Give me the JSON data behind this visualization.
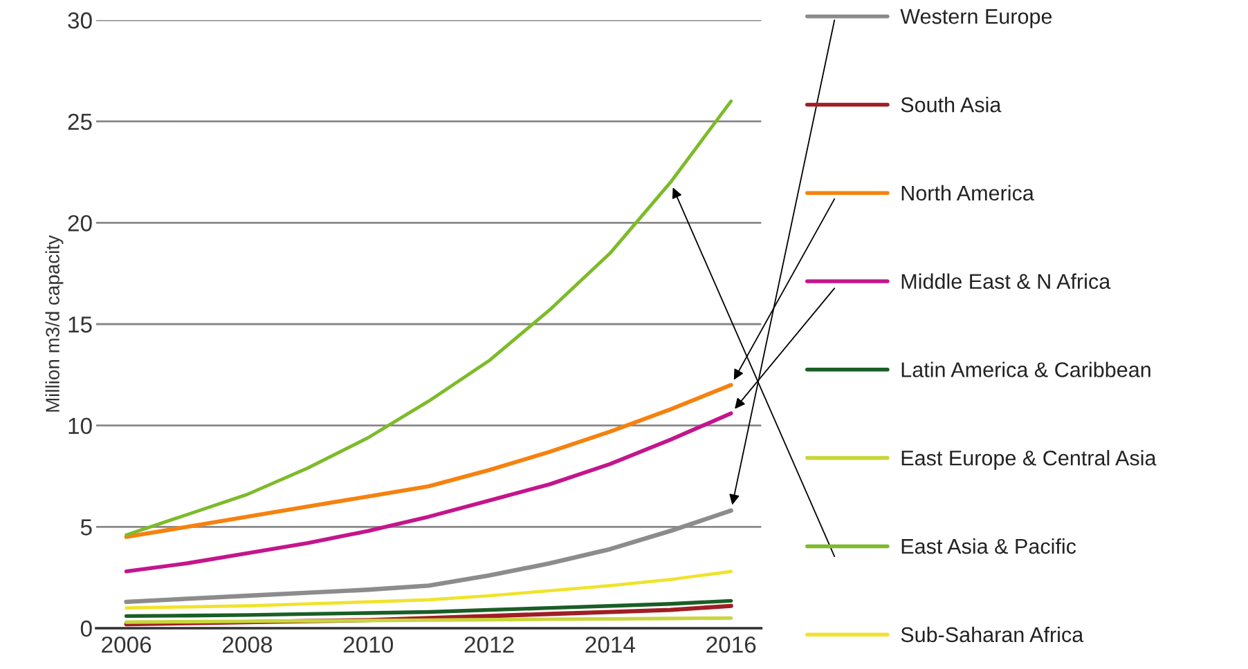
{
  "chart_data": {
    "type": "line",
    "ylabel": "Million m3/d capacity",
    "x": [
      2006,
      2007,
      2008,
      2009,
      2010,
      2011,
      2012,
      2013,
      2014,
      2015,
      2016
    ],
    "xlim": [
      2005.5,
      2016.5
    ],
    "xticks": [
      2006,
      2008,
      2010,
      2012,
      2014,
      2016
    ],
    "ylim": [
      0,
      30
    ],
    "yticks": [
      0,
      5,
      10,
      15,
      20,
      25,
      30
    ],
    "grid": "y",
    "legend": "right",
    "marker": "none",
    "line_style": "solid",
    "series": [
      {
        "name": "Western Europe",
        "color": "#8c8c8c",
        "values": [
          1.3,
          1.45,
          1.6,
          1.75,
          1.9,
          2.1,
          2.6,
          3.2,
          3.9,
          4.8,
          5.8
        ]
      },
      {
        "name": "South Asia",
        "color": "#a01e24",
        "values": [
          0.2,
          0.25,
          0.3,
          0.35,
          0.4,
          0.5,
          0.6,
          0.7,
          0.8,
          0.9,
          1.1
        ]
      },
      {
        "name": "North America",
        "color": "#f5820f",
        "values": [
          4.5,
          5.0,
          5.5,
          6.0,
          6.5,
          7.0,
          7.8,
          8.7,
          9.7,
          10.8,
          12.0
        ]
      },
      {
        "name": "Middle East & N Africa",
        "color": "#c4158c",
        "values": [
          2.8,
          3.2,
          3.7,
          4.2,
          4.8,
          5.5,
          6.3,
          7.1,
          8.1,
          9.3,
          10.6
        ]
      },
      {
        "name": "Latin America & Caribbean",
        "color": "#1a5e26",
        "values": [
          0.6,
          0.62,
          0.65,
          0.7,
          0.75,
          0.8,
          0.9,
          1.0,
          1.1,
          1.2,
          1.35
        ]
      },
      {
        "name": "East Europe & Central Asia",
        "color": "#c8d63c",
        "values": [
          0.3,
          0.32,
          0.34,
          0.36,
          0.38,
          0.4,
          0.42,
          0.44,
          0.46,
          0.48,
          0.5
        ]
      },
      {
        "name": "East Asia & Pacific",
        "color": "#7dbb2a",
        "values": [
          4.6,
          5.6,
          6.6,
          7.9,
          9.4,
          11.2,
          13.2,
          15.7,
          18.5,
          22.0,
          26.0
        ]
      },
      {
        "name": "Sub-Saharan Africa",
        "color": "#f0e32a",
        "values": [
          1.0,
          1.05,
          1.1,
          1.2,
          1.3,
          1.4,
          1.6,
          1.85,
          2.1,
          2.4,
          2.8
        ]
      }
    ]
  }
}
